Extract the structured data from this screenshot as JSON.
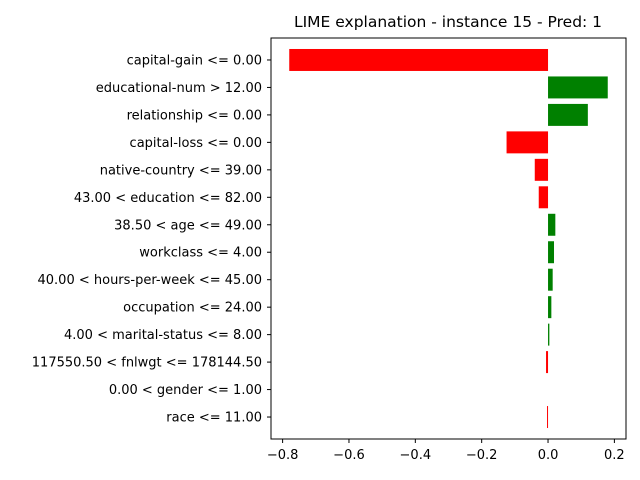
{
  "chart_data": {
    "type": "bar",
    "orientation": "horizontal",
    "title": "LIME explanation - instance 15 - Pred: 1",
    "xlabel": "",
    "ylabel": "",
    "xlim": [
      -0.835,
      0.235
    ],
    "xticks": [
      -0.8,
      -0.6,
      -0.4,
      -0.2,
      0.0,
      0.2
    ],
    "xtick_labels": [
      "−0.8",
      "−0.6",
      "−0.4",
      "−0.2",
      "0.0",
      "0.2"
    ],
    "grid": false,
    "colors": {
      "positive": "#008000",
      "negative": "#ff0000"
    },
    "categories": [
      "capital-gain <= 0.00",
      "educational-num > 12.00",
      "relationship <= 0.00",
      "capital-loss <= 0.00",
      "native-country <= 39.00",
      "43.00 < education <= 82.00",
      "38.50 < age <= 49.00",
      "workclass <= 4.00",
      "40.00 < hours-per-week <= 45.00",
      "occupation <= 24.00",
      "4.00 < marital-status <= 8.00",
      "117550.50 < fnlwgt <= 178144.50",
      "0.00 < gender <= 1.00",
      "race <= 11.00"
    ],
    "values": [
      -0.78,
      0.18,
      0.12,
      -0.125,
      -0.04,
      -0.028,
      0.022,
      0.018,
      0.014,
      0.01,
      0.004,
      -0.006,
      0.0,
      -0.003
    ]
  }
}
